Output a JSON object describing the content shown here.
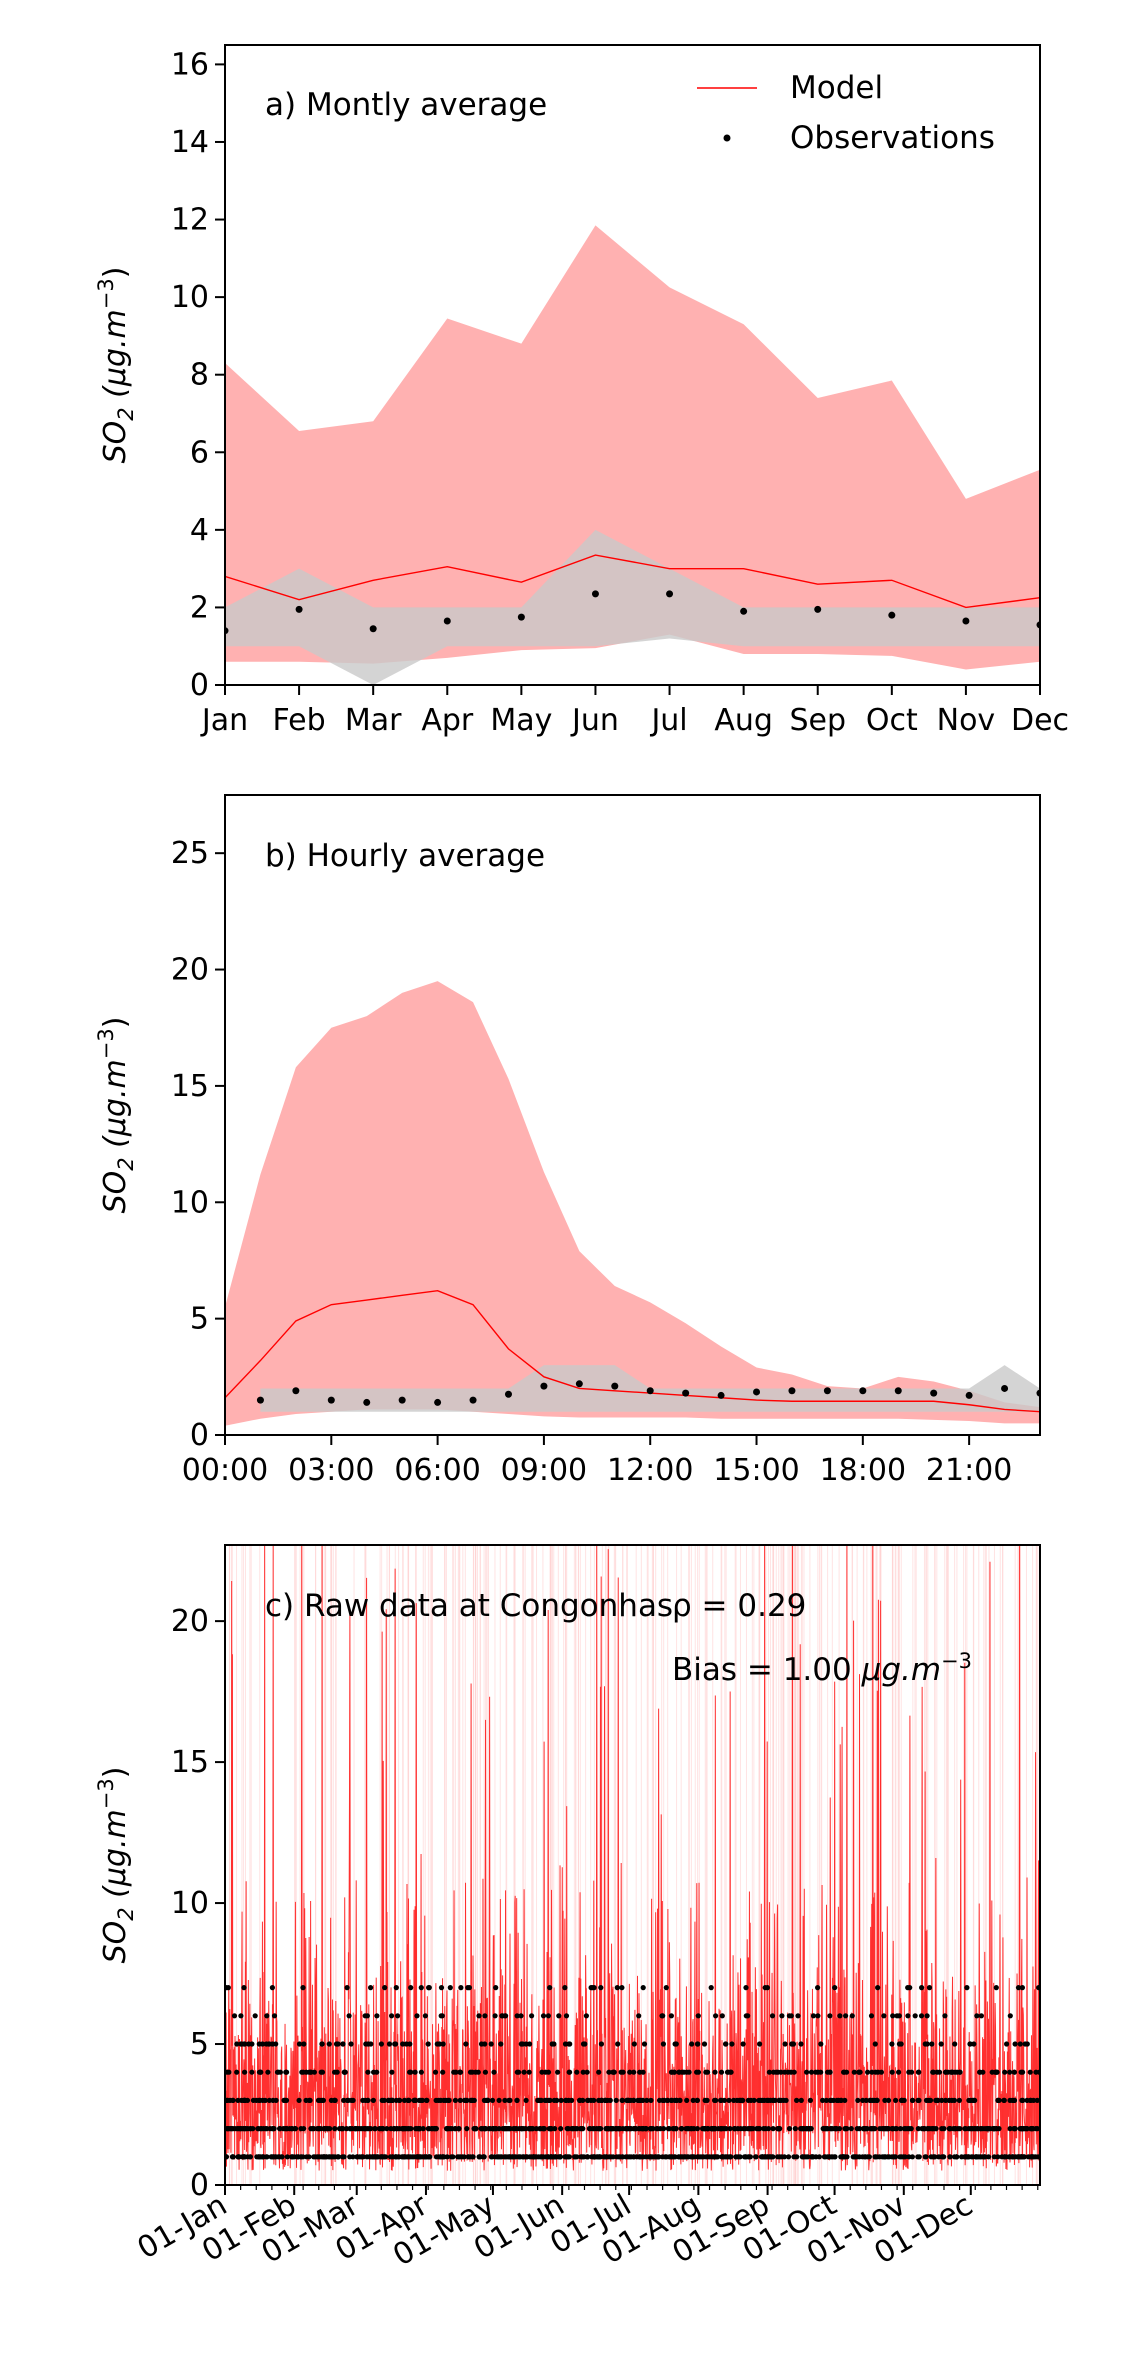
{
  "chart_data": [
    {
      "type": "line",
      "title": "a) Montly average",
      "xlabel": "",
      "ylabel": "SO",
      "ylabel_sub": "2",
      "ylabel_units": "(μg.m",
      "ylabel_exp": "−3",
      "ylabel_close": ")",
      "xlim": [
        0,
        11
      ],
      "ylim": [
        0,
        16.5
      ],
      "yticks": [
        0,
        2,
        4,
        6,
        8,
        10,
        12,
        14,
        16
      ],
      "xtick_labels": [
        "Jan",
        "Feb",
        "Mar",
        "Apr",
        "May",
        "Jun",
        "Jul",
        "Aug",
        "Sep",
        "Oct",
        "Nov",
        "Dec"
      ],
      "legend": {
        "placement": "top-right",
        "entries": [
          "Model",
          "Observations"
        ]
      },
      "grid": false,
      "x": [
        0,
        1,
        2,
        3,
        4,
        5,
        6,
        7,
        8,
        9,
        10,
        11
      ],
      "series": [
        {
          "name": "Model",
          "values": [
            2.8,
            2.2,
            2.7,
            3.05,
            2.65,
            3.35,
            3.0,
            3.0,
            2.6,
            2.7,
            2.0,
            2.25
          ]
        },
        {
          "name": "Observations",
          "values": [
            1.4,
            1.95,
            1.45,
            1.65,
            1.75,
            2.35,
            2.35,
            1.9,
            1.95,
            1.8,
            1.65,
            1.55
          ]
        }
      ],
      "model_band": {
        "upper": [
          8.3,
          6.55,
          6.8,
          9.45,
          8.8,
          11.85,
          10.25,
          9.3,
          7.4,
          7.85,
          4.8,
          5.55
        ],
        "lower": [
          0.6,
          0.6,
          0.55,
          0.7,
          0.9,
          0.95,
          1.3,
          0.8,
          0.8,
          0.75,
          0.4,
          0.6
        ]
      },
      "obs_band": {
        "upper": [
          2,
          3,
          2,
          2,
          2,
          4,
          3,
          2,
          2,
          2,
          2,
          2
        ],
        "lower": [
          1,
          1,
          0,
          1,
          1,
          1,
          1.2,
          1,
          1,
          1,
          1,
          1
        ]
      },
      "colors": {
        "model": "#ff0000",
        "model_band": "#ffb1b1",
        "obs_band": "#c9c9c9",
        "obs": "#000000"
      }
    },
    {
      "type": "line",
      "title": "b) Hourly average",
      "xlabel": "",
      "ylabel": "SO",
      "ylabel_sub": "2",
      "ylabel_units": "(μg.m",
      "ylabel_exp": "−3",
      "ylabel_close": ")",
      "xlim": [
        0,
        23
      ],
      "ylim": [
        0,
        27.5
      ],
      "yticks": [
        0,
        5,
        10,
        15,
        20,
        25
      ],
      "xticks": [
        0,
        3,
        6,
        9,
        12,
        15,
        18,
        21
      ],
      "xtick_labels": [
        "00:00",
        "03:00",
        "06:00",
        "09:00",
        "12:00",
        "15:00",
        "18:00",
        "21:00"
      ],
      "grid": false,
      "x": [
        0,
        1,
        2,
        3,
        4,
        5,
        6,
        7,
        8,
        9,
        10,
        11,
        12,
        13,
        14,
        15,
        16,
        17,
        18,
        19,
        20,
        21,
        22,
        23
      ],
      "series": [
        {
          "name": "Model",
          "values": [
            1.6,
            3.2,
            4.9,
            5.6,
            5.8,
            6.0,
            6.2,
            5.6,
            3.7,
            2.5,
            2.0,
            1.9,
            1.8,
            1.7,
            1.6,
            1.5,
            1.45,
            1.45,
            1.45,
            1.45,
            1.45,
            1.3,
            1.1,
            1.0
          ]
        },
        {
          "name": "Observations",
          "x": [
            1,
            2,
            3,
            4,
            5,
            6,
            7,
            8,
            9,
            10,
            11,
            12,
            13,
            14,
            15,
            16,
            17,
            18,
            19,
            20,
            21,
            22,
            23
          ],
          "values": [
            1.5,
            1.9,
            1.5,
            1.4,
            1.5,
            1.4,
            1.5,
            1.75,
            2.1,
            2.2,
            2.1,
            1.9,
            1.8,
            1.7,
            1.85,
            1.9,
            1.9,
            1.9,
            1.9,
            1.8,
            1.7,
            2.0,
            1.8
          ]
        }
      ],
      "model_band": {
        "upper": [
          5.5,
          11.2,
          15.8,
          17.5,
          18.0,
          19.0,
          19.5,
          18.6,
          15.3,
          11.3,
          7.9,
          6.4,
          5.7,
          4.8,
          3.8,
          2.9,
          2.6,
          2.1,
          2.0,
          2.5,
          2.3,
          1.9,
          1.4,
          1.2
        ],
        "lower": [
          0.4,
          0.7,
          0.9,
          1.0,
          1.1,
          1.1,
          1.1,
          1.0,
          0.9,
          0.8,
          0.75,
          0.75,
          0.75,
          0.75,
          0.7,
          0.7,
          0.7,
          0.7,
          0.7,
          0.7,
          0.65,
          0.6,
          0.5,
          0.5
        ]
      },
      "obs_band": {
        "x": [
          1,
          2,
          3,
          4,
          5,
          6,
          7,
          8,
          9,
          10,
          11,
          12,
          13,
          14,
          15,
          16,
          17,
          18,
          19,
          20,
          21,
          22,
          23
        ],
        "upper": [
          2,
          2,
          2,
          2,
          2,
          2,
          2,
          2,
          3,
          3,
          3,
          2,
          2,
          2,
          2,
          2,
          2,
          2,
          2,
          2,
          2,
          3,
          2
        ],
        "lower": [
          1,
          1,
          1,
          1,
          1,
          1,
          1,
          1,
          1,
          1,
          1,
          1,
          1,
          1,
          1,
          1,
          1,
          1,
          1,
          1,
          1,
          1,
          1
        ]
      },
      "colors": {
        "model": "#ff0000",
        "model_band": "#ffb1b1",
        "obs_band": "#c9c9c9",
        "obs": "#000000"
      }
    },
    {
      "type": "line",
      "title": "c) Raw data at Congonhas",
      "annotations": [
        "ρ = 0.29",
        "Bias = 1.00",
        "μg.m",
        "−3"
      ],
      "xlabel": "",
      "ylabel": "SO",
      "ylabel_sub": "2",
      "ylabel_units": "(μg.m",
      "ylabel_exp": "−3",
      "ylabel_close": ")",
      "xlim_days": [
        0,
        365
      ],
      "ylim": [
        0,
        22.7
      ],
      "yticks": [
        0,
        5,
        10,
        15,
        20
      ],
      "xticks_days": [
        0,
        31,
        59,
        90,
        120,
        151,
        181,
        212,
        243,
        273,
        304,
        334
      ],
      "xtick_labels": [
        "01-Jan",
        "01-Feb",
        "01-Mar",
        "01-Apr",
        "01-May",
        "01-Jun",
        "01-Jul",
        "01-Aug",
        "01-Sep",
        "01-Oct",
        "01-Nov",
        "01-Dec"
      ],
      "grid": false,
      "observation_levels": [
        1,
        2,
        3,
        4,
        5,
        6,
        7
      ],
      "model_typical_range": [
        0.5,
        6
      ],
      "model_peak_max": 22.7,
      "colors": {
        "model": "#ff1a1a",
        "model_light": "#ffcccc",
        "obs": "#000000"
      }
    }
  ]
}
